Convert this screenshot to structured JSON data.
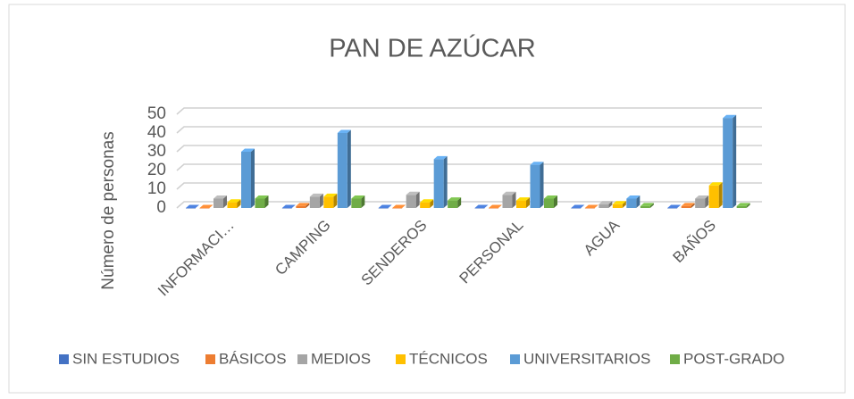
{
  "chart_data": {
    "type": "bar3d",
    "title": "PAN DE AZÚCAR",
    "y_label": "Número de personas",
    "categories": [
      "INFORMACI…",
      "CAMPING",
      "SENDEROS",
      "PERSONAL",
      "AGUA",
      "BAÑOS"
    ],
    "series": [
      {
        "name": "SIN ESTUDIOS",
        "color": "#4472c4",
        "values": [
          0,
          0,
          0,
          0,
          0,
          0
        ]
      },
      {
        "name": "BÁSICOS",
        "color": "#ed7d31",
        "values": [
          0,
          1,
          0,
          0,
          0,
          1
        ]
      },
      {
        "name": "MEDIOS",
        "color": "#a5a5a5",
        "values": [
          5,
          6,
          7,
          7,
          2,
          5
        ]
      },
      {
        "name": "TÉCNICOS",
        "color": "#ffc000",
        "values": [
          3,
          6,
          3,
          4,
          2,
          12
        ]
      },
      {
        "name": "UNIVERSITARIOS",
        "color": "#5b9bd5",
        "values": [
          30,
          40,
          26,
          23,
          5,
          48
        ]
      },
      {
        "name": "POST-GRADO",
        "color": "#70ad47",
        "values": [
          5,
          5,
          4,
          5,
          1,
          1
        ]
      }
    ],
    "ylim": [
      0,
      50
    ],
    "yticks": [
      0,
      10,
      20,
      30,
      40,
      50
    ],
    "grid": true,
    "legend": "bottom"
  }
}
